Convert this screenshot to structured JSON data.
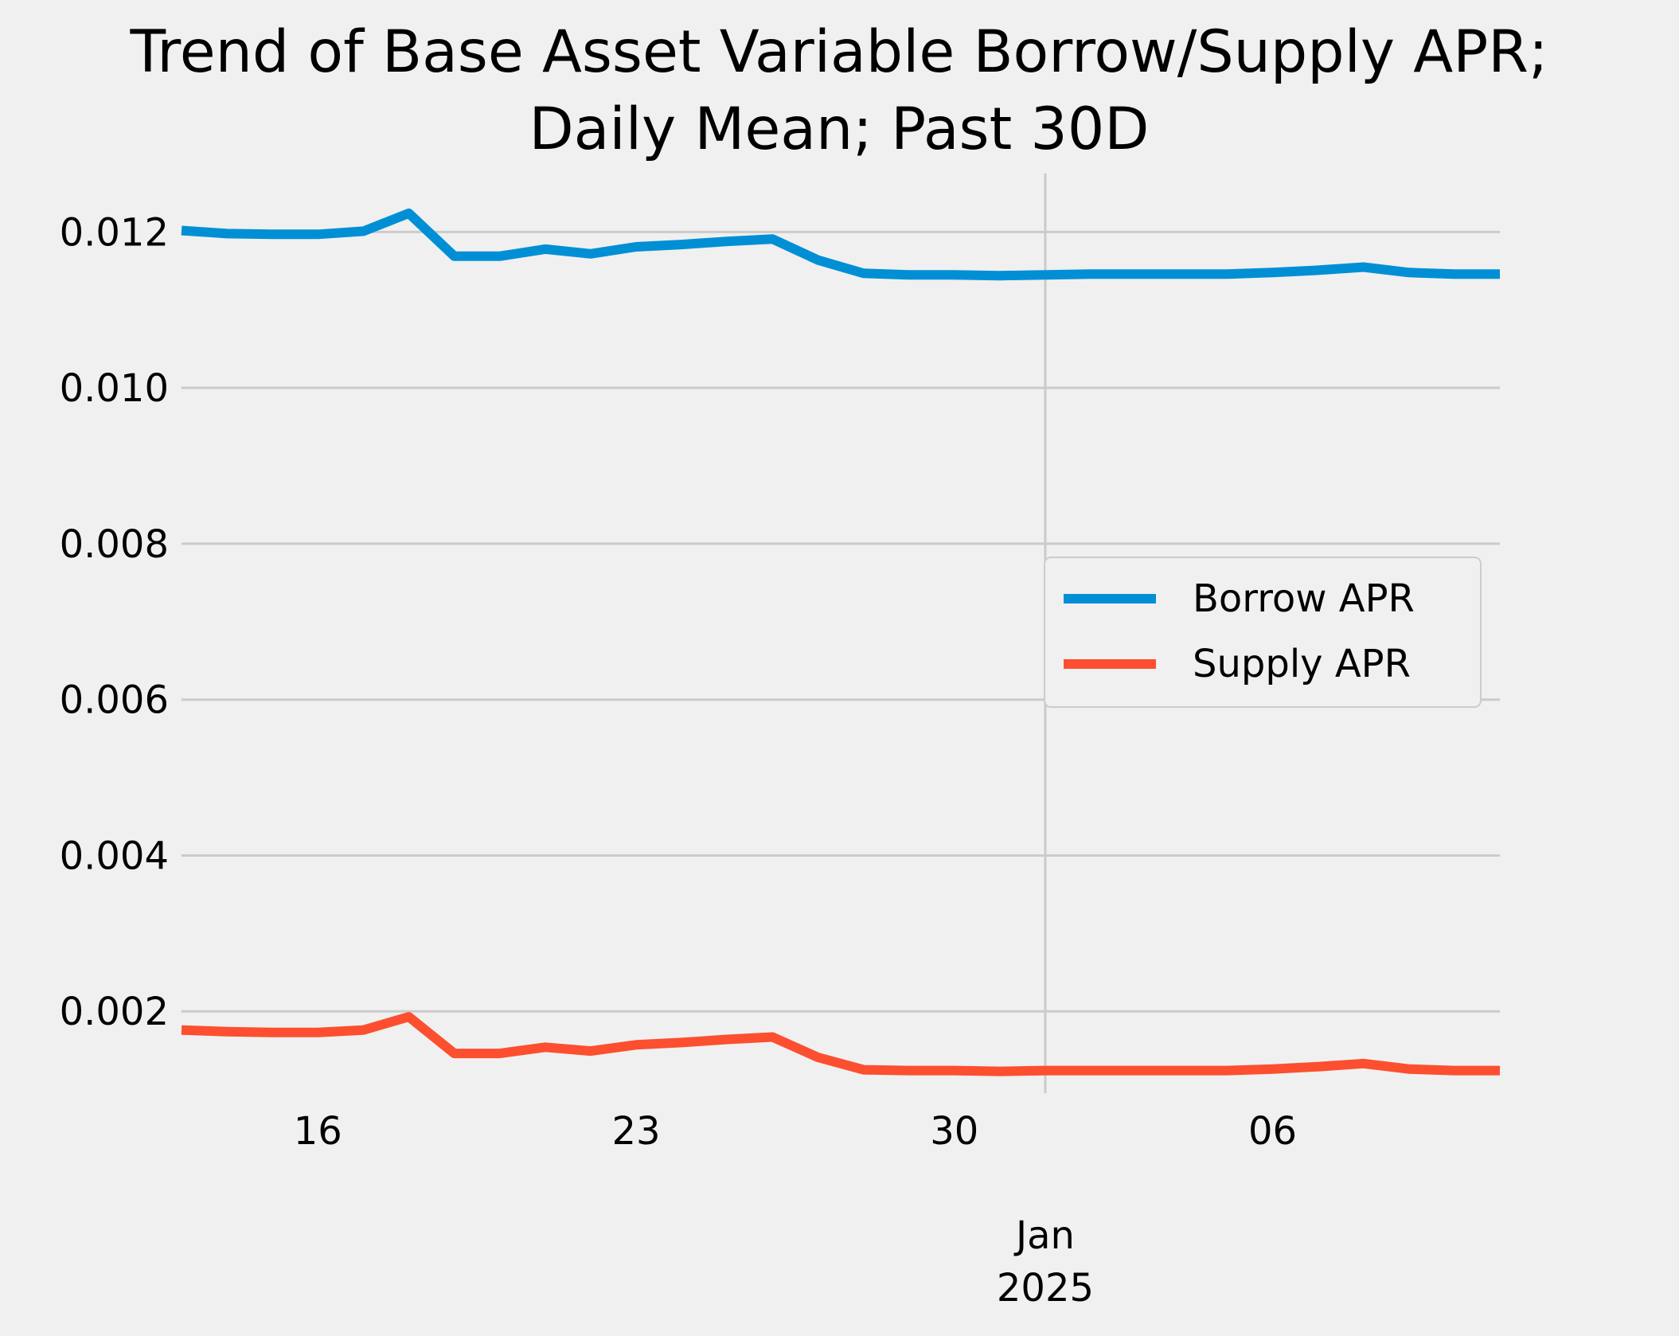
{
  "chart_data": {
    "type": "line",
    "title_lines": [
      "Trend of Base Asset Variable Borrow/Supply APR;",
      "Daily Mean; Past 30D"
    ],
    "xlabel": "",
    "ylabel": "",
    "x": [
      "2024-12-13",
      "2024-12-14",
      "2024-12-15",
      "2024-12-16",
      "2024-12-17",
      "2024-12-18",
      "2024-12-19",
      "2024-12-20",
      "2024-12-21",
      "2024-12-22",
      "2024-12-23",
      "2024-12-24",
      "2024-12-25",
      "2024-12-26",
      "2024-12-27",
      "2024-12-28",
      "2024-12-29",
      "2024-12-30",
      "2024-12-31",
      "2025-01-01",
      "2025-01-02",
      "2025-01-03",
      "2025-01-04",
      "2025-01-05",
      "2025-01-06",
      "2025-01-07",
      "2025-01-08",
      "2025-01-09",
      "2025-01-10",
      "2025-01-11"
    ],
    "xlim": [
      "2024-12-13",
      "2025-01-11"
    ],
    "ylim": [
      0.00095,
      0.01275
    ],
    "x_ticks": [
      {
        "date": "2024-12-16",
        "label": "16"
      },
      {
        "date": "2024-12-23",
        "label": "23"
      },
      {
        "date": "2024-12-30",
        "label": "30"
      },
      {
        "date": "2025-01-06",
        "label": "06"
      }
    ],
    "x_major_tick": {
      "date": "2025-01-01",
      "label_line1": "Jan",
      "label_line2": "2025"
    },
    "y_ticks": [
      {
        "value": 0.002,
        "label": "0.002"
      },
      {
        "value": 0.004,
        "label": "0.004"
      },
      {
        "value": 0.006,
        "label": "0.006"
      },
      {
        "value": 0.008,
        "label": "0.008"
      },
      {
        "value": 0.01,
        "label": "0.010"
      },
      {
        "value": 0.012,
        "label": "0.012"
      }
    ],
    "grid": true,
    "legend_position": "center-right",
    "series": [
      {
        "name": "Borrow APR",
        "color": "#008fd5",
        "values": [
          0.01202,
          0.01198,
          0.01197,
          0.01197,
          0.01201,
          0.01224,
          0.01169,
          0.01169,
          0.01178,
          0.01172,
          0.01181,
          0.01184,
          0.01188,
          0.01191,
          0.01164,
          0.01147,
          0.01145,
          0.01145,
          0.01144,
          0.01145,
          0.01146,
          0.01146,
          0.01146,
          0.01146,
          0.01148,
          0.01151,
          0.01155,
          0.01148,
          0.01146,
          0.01146
        ]
      },
      {
        "name": "Supply APR",
        "color": "#fc4f30",
        "values": [
          0.00176,
          0.00174,
          0.00173,
          0.00173,
          0.00176,
          0.00193,
          0.00146,
          0.00146,
          0.00154,
          0.00149,
          0.00157,
          0.0016,
          0.00164,
          0.00167,
          0.00141,
          0.00125,
          0.00124,
          0.00124,
          0.00123,
          0.00124,
          0.00124,
          0.00124,
          0.00124,
          0.00124,
          0.00126,
          0.00129,
          0.00133,
          0.00126,
          0.00124,
          0.00124
        ]
      }
    ]
  }
}
